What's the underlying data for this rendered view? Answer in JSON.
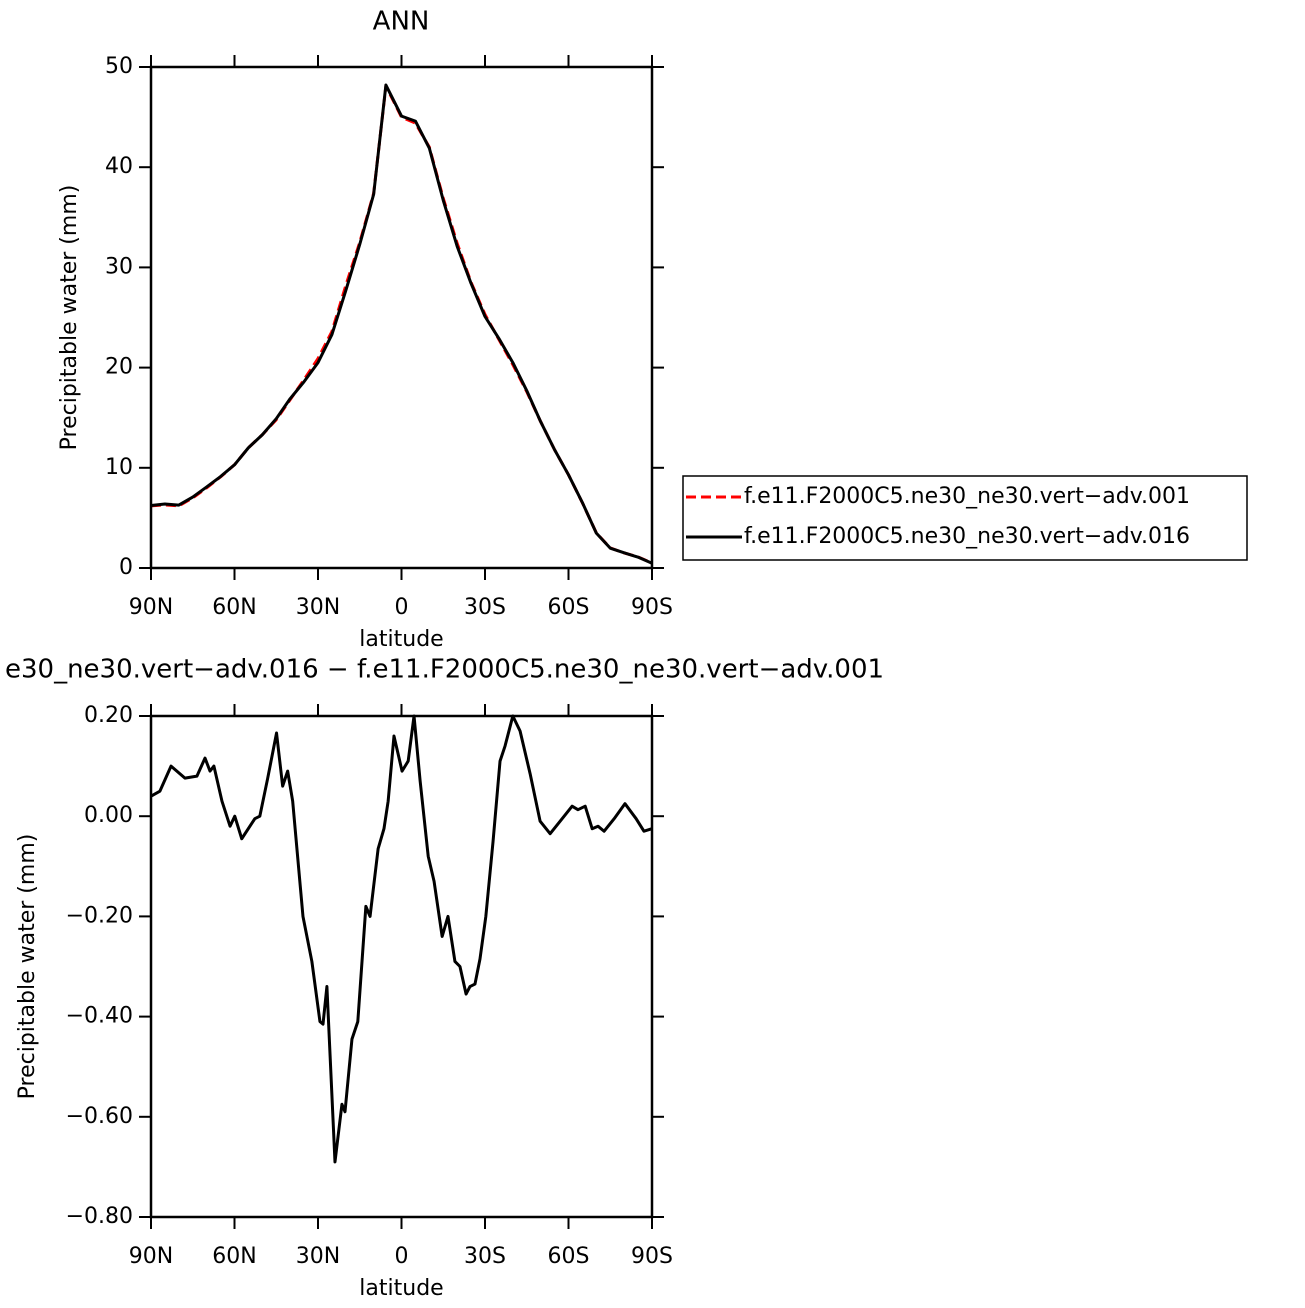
{
  "chart_data": [
    {
      "type": "line",
      "title": "ANN",
      "xlabel": "latitude",
      "ylabel": "Precipitable water (mm)",
      "x": [
        90,
        85,
        80,
        75,
        70,
        65,
        60,
        55,
        50,
        45,
        40,
        35,
        30,
        25,
        20,
        15,
        10,
        5.6,
        0,
        -5,
        -10,
        -15,
        -20,
        -25,
        -30,
        -35,
        -40,
        -45,
        -50,
        -55,
        -60,
        -65,
        -70,
        -75,
        -80,
        -85,
        -90
      ],
      "series": [
        {
          "name": "f.e11.F2000C5.ne30_ne30.vert−adv.001",
          "color": "#ff0000",
          "style": "dashed",
          "values": [
            6.2,
            6.3,
            6.2,
            7.0,
            8.0,
            9.1,
            10.3,
            12.0,
            13.3,
            14.8,
            16.8,
            18.8,
            20.9,
            23.6,
            28.2,
            32.5,
            37.4,
            48.1,
            45.0,
            44.4,
            42.0,
            36.9,
            32.4,
            28.5,
            25.3,
            22.8,
            20.3,
            17.6,
            14.6,
            11.8,
            9.3,
            6.5,
            3.5,
            2.0,
            1.5,
            1.1,
            0.5
          ]
        },
        {
          "name": "f.e11.F2000C5.ne30_ne30.vert−adv.016",
          "color": "#000000",
          "style": "solid",
          "values": [
            6.24,
            6.39,
            6.28,
            7.08,
            8.09,
            9.13,
            10.3,
            12.0,
            13.3,
            14.9,
            16.9,
            18.6,
            20.5,
            23.3,
            27.7,
            32.3,
            37.3,
            48.2,
            45.1,
            44.6,
            41.9,
            36.7,
            32.1,
            28.4,
            25.1,
            22.9,
            20.5,
            17.7,
            14.6,
            11.8,
            9.3,
            6.52,
            3.48,
            1.98,
            1.52,
            1.08,
            0.47
          ]
        }
      ],
      "xlim": [
        90,
        -90
      ],
      "xticks": [
        {
          "value": 90,
          "label": "90N"
        },
        {
          "value": 60,
          "label": "60N"
        },
        {
          "value": 30,
          "label": "30N"
        },
        0,
        {
          "value": -30,
          "label": "30S"
        },
        {
          "value": -60,
          "label": "60S"
        },
        {
          "value": -90,
          "label": "90S"
        }
      ],
      "ylim": [
        0,
        50
      ],
      "yticks": [
        0,
        10,
        20,
        30,
        40,
        50
      ],
      "grid": false
    },
    {
      "type": "line",
      "title": "e30_ne30.vert−adv.016 − f.e11.F2000C5.ne30_ne30.vert−adv.001",
      "xlabel": "latitude",
      "ylabel": "Precipitable water (mm)",
      "x": [
        90,
        86.8,
        82.8,
        77.8,
        73.5,
        70.6,
        68.8,
        67.4,
        64.5,
        61.6,
        59.9,
        57.4,
        52.7,
        50.9,
        48.1,
        44.9,
        42.7,
        40.9,
        39.1,
        35.4,
        32.2,
        29.3,
        28.2,
        26.8,
        23.9,
        21.4,
        20.3,
        17.8,
        15.7,
        12.8,
        11.3,
        8.4,
        6.3,
        4.8,
        2.7,
        -0.2,
        -2.4,
        -4.5,
        -6.7,
        -9.6,
        -11.7,
        -14.6,
        -16.7,
        -19.2,
        -21.0,
        -23.2,
        -24.6,
        -26.4,
        -28.2,
        -30.3,
        -32.9,
        -35.4,
        -37.2,
        -40.0,
        -42.6,
        -46.2,
        -49.8,
        -53.4,
        -57.0,
        -61.3,
        -63.4,
        -66.0,
        -68.5,
        -70.6,
        -72.8,
        -76.4,
        -80.3,
        -84.3,
        -87.1,
        -90
      ],
      "values": [
        0.04,
        0.05,
        0.1,
        0.076,
        0.08,
        0.116,
        0.09,
        0.1,
        0.03,
        -0.02,
        0,
        -0.045,
        -0.005,
        0,
        0.075,
        0.166,
        0.06,
        0.09,
        0.03,
        -0.2,
        -0.29,
        -0.41,
        -0.415,
        -0.34,
        -0.69,
        -0.575,
        -0.59,
        -0.445,
        -0.41,
        -0.18,
        -0.2,
        -0.065,
        -0.025,
        0.03,
        0.16,
        0.09,
        0.11,
        0.2,
        0.07,
        -0.08,
        -0.13,
        -0.24,
        -0.2,
        -0.29,
        -0.3,
        -0.355,
        -0.34,
        -0.335,
        -0.285,
        -0.2,
        -0.05,
        0.11,
        0.14,
        0.2,
        0.17,
        0.085,
        -0.01,
        -0.035,
        -0.01,
        0.02,
        0.013,
        0.02,
        -0.025,
        -0.02,
        -0.03,
        -0.005,
        0.025,
        -0.005,
        -0.03,
        -0.025
      ],
      "color": "#000000",
      "style": "solid",
      "xlim": [
        90,
        -90
      ],
      "xticks": [
        {
          "value": 90,
          "label": "90N"
        },
        {
          "value": 60,
          "label": "60N"
        },
        {
          "value": 30,
          "label": "30N"
        },
        0,
        {
          "value": -30,
          "label": "30S"
        },
        {
          "value": -60,
          "label": "60S"
        },
        {
          "value": -90,
          "label": "90S"
        }
      ],
      "ylim": [
        -0.8,
        0.2
      ],
      "yticks": [
        {
          "value": -0.8,
          "label": "−0.80"
        },
        {
          "value": -0.6,
          "label": "−0.60"
        },
        {
          "value": -0.4,
          "label": "−0.40"
        },
        {
          "value": -0.2,
          "label": "−0.20"
        },
        {
          "value": 0,
          "label": "0.00"
        },
        {
          "value": 0.2,
          "label": "0.20"
        }
      ],
      "grid": false
    }
  ]
}
